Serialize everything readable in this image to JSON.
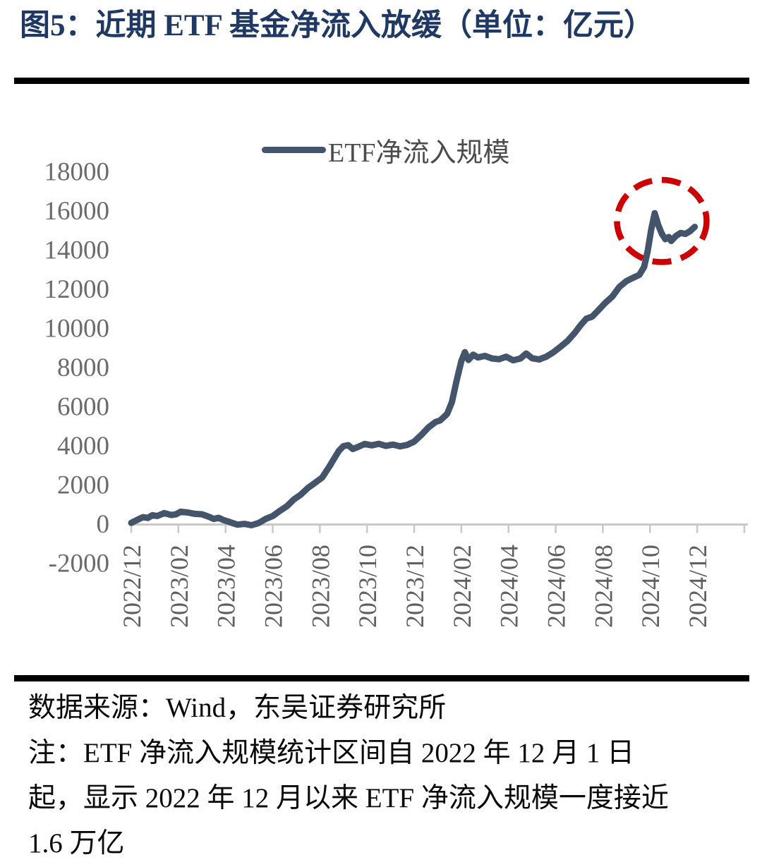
{
  "header": {
    "figure_title": "图5：近期 ETF 基金净流入放缓（单位：亿元）"
  },
  "chart_data": {
    "type": "line",
    "title": "近期ETF基金净流入放缓",
    "unit": "亿元",
    "grid": false,
    "legend": {
      "label": "ETF净流入规模",
      "position": "top-center"
    },
    "ylim": [
      -2000,
      18000
    ],
    "y_ticks": [
      18000,
      16000,
      14000,
      12000,
      10000,
      8000,
      6000,
      4000,
      2000,
      0,
      -2000
    ],
    "x_tick_labels": [
      "2022/12",
      "2023/02",
      "2023/04",
      "2023/06",
      "2023/08",
      "2023/10",
      "2023/12",
      "2024/02",
      "2024/04",
      "2024/06",
      "2024/08",
      "2024/10",
      "2024/12"
    ],
    "x_axis_note": "points x-coordinate = months since 2022/12/01; axis extends one extra unlabeled tick",
    "series": [
      {
        "name": "ETF净流入规模",
        "color": "#44546A",
        "points": [
          [
            0.0,
            30
          ],
          [
            0.25,
            180
          ],
          [
            0.5,
            320
          ],
          [
            0.7,
            280
          ],
          [
            0.9,
            420
          ],
          [
            1.1,
            380
          ],
          [
            1.4,
            530
          ],
          [
            1.7,
            430
          ],
          [
            1.9,
            470
          ],
          [
            2.1,
            600
          ],
          [
            2.4,
            560
          ],
          [
            2.7,
            490
          ],
          [
            3.0,
            470
          ],
          [
            3.3,
            340
          ],
          [
            3.5,
            230
          ],
          [
            3.7,
            290
          ],
          [
            3.9,
            180
          ],
          [
            4.2,
            60
          ],
          [
            4.5,
            -60
          ],
          [
            4.8,
            -20
          ],
          [
            5.1,
            -90
          ],
          [
            5.4,
            20
          ],
          [
            5.7,
            230
          ],
          [
            6.0,
            380
          ],
          [
            6.3,
            640
          ],
          [
            6.6,
            880
          ],
          [
            6.9,
            1230
          ],
          [
            7.2,
            1480
          ],
          [
            7.5,
            1820
          ],
          [
            7.8,
            2080
          ],
          [
            8.1,
            2350
          ],
          [
            8.4,
            2900
          ],
          [
            8.6,
            3300
          ],
          [
            8.8,
            3700
          ],
          [
            9.0,
            3950
          ],
          [
            9.2,
            4000
          ],
          [
            9.4,
            3800
          ],
          [
            9.6,
            3900
          ],
          [
            9.9,
            4060
          ],
          [
            10.2,
            3990
          ],
          [
            10.5,
            4070
          ],
          [
            10.8,
            3960
          ],
          [
            11.1,
            4030
          ],
          [
            11.4,
            3940
          ],
          [
            11.7,
            4010
          ],
          [
            12.0,
            4180
          ],
          [
            12.3,
            4520
          ],
          [
            12.6,
            4900
          ],
          [
            12.9,
            5180
          ],
          [
            13.1,
            5260
          ],
          [
            13.4,
            5600
          ],
          [
            13.6,
            6200
          ],
          [
            13.8,
            7300
          ],
          [
            14.0,
            8300
          ],
          [
            14.15,
            8750
          ],
          [
            14.3,
            8350
          ],
          [
            14.5,
            8620
          ],
          [
            14.7,
            8480
          ],
          [
            15.0,
            8560
          ],
          [
            15.3,
            8430
          ],
          [
            15.6,
            8390
          ],
          [
            15.9,
            8520
          ],
          [
            16.2,
            8330
          ],
          [
            16.5,
            8420
          ],
          [
            16.75,
            8680
          ],
          [
            17.0,
            8440
          ],
          [
            17.3,
            8380
          ],
          [
            17.6,
            8520
          ],
          [
            17.9,
            8740
          ],
          [
            18.2,
            9020
          ],
          [
            18.5,
            9320
          ],
          [
            18.8,
            9720
          ],
          [
            19.05,
            10120
          ],
          [
            19.3,
            10460
          ],
          [
            19.55,
            10570
          ],
          [
            19.8,
            10880
          ],
          [
            20.1,
            11260
          ],
          [
            20.4,
            11590
          ],
          [
            20.7,
            12080
          ],
          [
            21.0,
            12380
          ],
          [
            21.3,
            12560
          ],
          [
            21.55,
            12700
          ],
          [
            21.75,
            13100
          ],
          [
            21.9,
            13900
          ],
          [
            22.05,
            15000
          ],
          [
            22.2,
            15850
          ],
          [
            22.35,
            15250
          ],
          [
            22.5,
            14800
          ],
          [
            22.65,
            14520
          ],
          [
            22.8,
            14630
          ],
          [
            22.9,
            14430
          ],
          [
            23.1,
            14690
          ],
          [
            23.3,
            14840
          ],
          [
            23.5,
            14790
          ],
          [
            23.7,
            14930
          ],
          [
            23.9,
            15150
          ]
        ]
      }
    ],
    "annotation": {
      "shape": "dashed-ellipse",
      "color": "#CC0000",
      "center": [
        22.5,
        15450
      ],
      "radius": [
        1.9,
        2100
      ]
    }
  },
  "footer": {
    "source": "数据来源：Wind，东吴证券研究所",
    "note_lines": [
      "注：ETF 净流入规模统计区间自 2022 年 12 月 1 日",
      "起，显示 2022 年 12 月以来 ETF 净流入规模一度接近",
      "1.6 万亿"
    ]
  },
  "colors": {
    "title": "#1F3864",
    "series_line": "#44546A",
    "annotation": "#CC0000",
    "axis": "#C8C8C8",
    "y_tick_label": "#6b6b6b",
    "x_tick_label": "#5f5f5f",
    "rule": "#000000"
  }
}
